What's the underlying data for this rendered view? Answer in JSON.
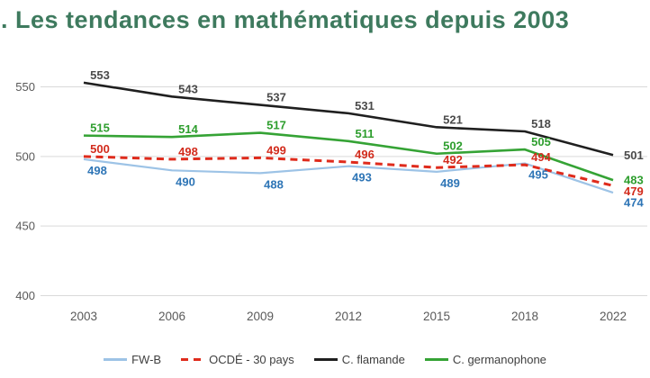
{
  "title": ". Les tendances en mathématiques depuis 2003",
  "chart_data": {
    "type": "line",
    "categories": [
      "2003",
      "2006",
      "2009",
      "2012",
      "2015",
      "2018",
      "2022"
    ],
    "series": [
      {
        "name": "FW-B",
        "color": "#9DC3E6",
        "label_color": "#2E75B6",
        "dash": false,
        "width": 2.2,
        "label_pos": "below",
        "values": [
          498,
          490,
          488,
          493,
          489,
          495,
          474
        ]
      },
      {
        "name": "OCDÉ - 30 pays",
        "color": "#DF2B1C",
        "label_color": "#D22B1C",
        "dash": true,
        "width": 3,
        "label_pos": "above",
        "values": [
          500,
          498,
          499,
          496,
          492,
          494,
          479
        ]
      },
      {
        "name": "C. flamande",
        "color": "#1f1f1f",
        "label_color": "#4a4a4a",
        "dash": false,
        "width": 2.6,
        "label_pos": "above",
        "values": [
          553,
          543,
          537,
          531,
          521,
          518,
          501
        ]
      },
      {
        "name": "C. germanophone",
        "color": "#35A335",
        "label_color": "#2E9E2E",
        "dash": false,
        "width": 2.6,
        "label_pos": "above",
        "values": [
          515,
          514,
          517,
          511,
          502,
          505,
          483
        ]
      }
    ],
    "yticks": [
      550,
      500,
      450,
      400
    ],
    "ylim": [
      400,
      560
    ],
    "grid": "horizontal-only",
    "grid_color": "#D9D9D9",
    "axis_label_color": "#595959",
    "legend_position": "bottom",
    "title_color": "#3E7A5E"
  }
}
